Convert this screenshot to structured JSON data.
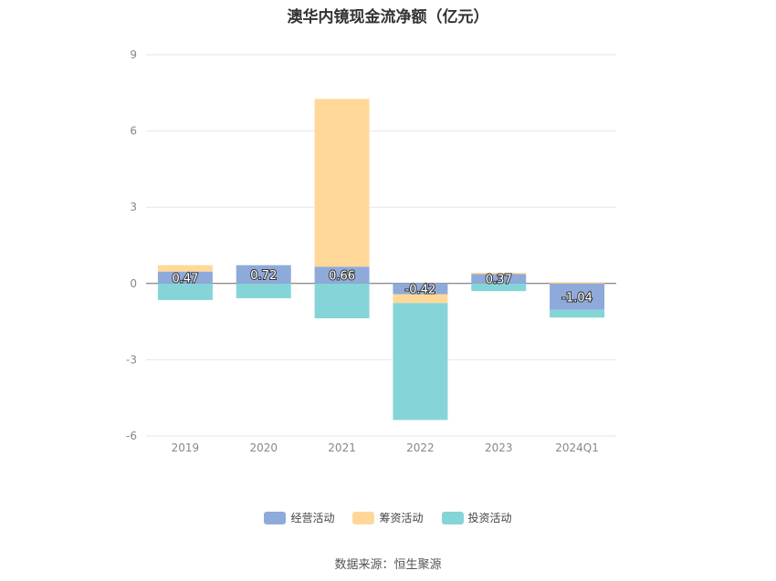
{
  "title": "澳华内镜现金流净额（亿元）",
  "source": "数据来源：恒生聚源",
  "chart_data": {
    "type": "bar",
    "stacked": true,
    "categories": [
      "2019",
      "2020",
      "2021",
      "2022",
      "2023",
      "2024Q1"
    ],
    "ylim": [
      -6,
      9
    ],
    "yticks": [
      9,
      6,
      3,
      0,
      -3,
      -6
    ],
    "series": [
      {
        "name": "经营活动",
        "color": "#8eaadb",
        "values": [
          0.47,
          0.72,
          0.66,
          -0.42,
          0.37,
          -1.04
        ],
        "labels": [
          "0.47",
          "0.72",
          "0.66",
          "-0.42",
          "0.37",
          "-1.04"
        ]
      },
      {
        "name": "筹资活动",
        "color": "#ffd899",
        "values": [
          0.25,
          0.0,
          6.6,
          -0.35,
          0.05,
          0.05
        ]
      },
      {
        "name": "投资活动",
        "color": "#85d5d8",
        "values": [
          -0.65,
          -0.58,
          -1.37,
          -4.6,
          -0.3,
          -0.3
        ]
      }
    ]
  }
}
